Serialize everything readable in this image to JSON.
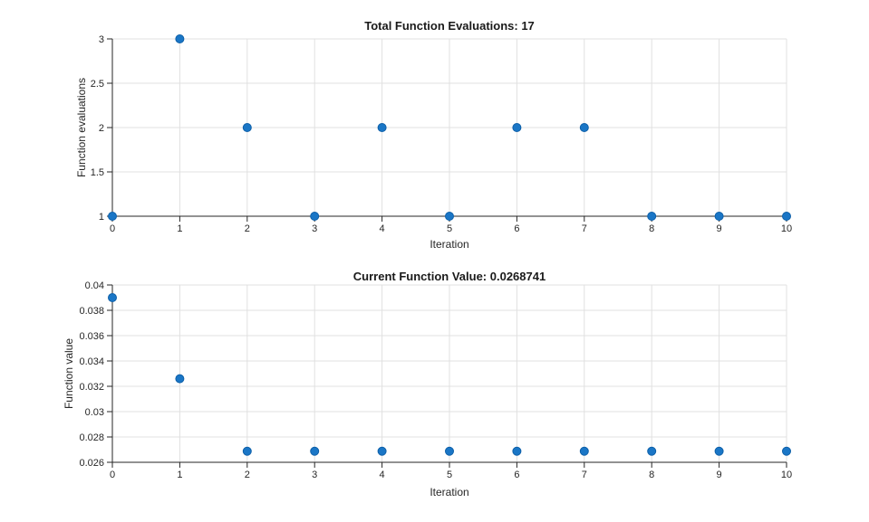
{
  "figure": {
    "background": "#ffffff"
  },
  "colors": {
    "axis": "#262626",
    "grid": "#e0e0e0",
    "tick_label": "#262626",
    "title_text": "#1a1a1a"
  },
  "chart_data": [
    {
      "type": "scatter",
      "title": "Total Function Evaluations: 17",
      "xlabel": "Iteration",
      "ylabel": "Function evaluations",
      "x": [
        0,
        1,
        2,
        3,
        4,
        5,
        6,
        7,
        8,
        9,
        10
      ],
      "y": [
        1,
        3,
        2,
        1,
        2,
        1,
        2,
        2,
        1,
        1,
        1
      ],
      "xlim": [
        0,
        10
      ],
      "ylim": [
        1,
        3
      ],
      "xticks": [
        0,
        1,
        2,
        3,
        4,
        5,
        6,
        7,
        8,
        9,
        10
      ],
      "xtick_labels": [
        "0",
        "1",
        "2",
        "3",
        "4",
        "5",
        "6",
        "7",
        "8",
        "9",
        "10"
      ],
      "yticks": [
        1,
        1.5,
        2,
        2.5,
        3
      ],
      "ytick_labels": [
        "1",
        "1.5",
        "2",
        "2.5",
        "3"
      ],
      "grid": true,
      "legend": null,
      "marker": {
        "shape": "circle",
        "size": 9,
        "fill": "#1a76c6",
        "edge": "#0d5fa8"
      }
    },
    {
      "type": "scatter",
      "title": "Current Function Value: 0.0268741",
      "xlabel": "Iteration",
      "ylabel": "Function value",
      "x": [
        0,
        1,
        2,
        3,
        4,
        5,
        6,
        7,
        8,
        9,
        10
      ],
      "y": [
        0.039,
        0.0326,
        0.0268741,
        0.0268741,
        0.0268741,
        0.0268741,
        0.0268741,
        0.0268741,
        0.0268741,
        0.0268741,
        0.0268741
      ],
      "xlim": [
        0,
        10
      ],
      "ylim": [
        0.026,
        0.04
      ],
      "xticks": [
        0,
        1,
        2,
        3,
        4,
        5,
        6,
        7,
        8,
        9,
        10
      ],
      "xtick_labels": [
        "0",
        "1",
        "2",
        "3",
        "4",
        "5",
        "6",
        "7",
        "8",
        "9",
        "10"
      ],
      "yticks": [
        0.026,
        0.028,
        0.03,
        0.032,
        0.034,
        0.036,
        0.038,
        0.04
      ],
      "ytick_labels": [
        "0.026",
        "0.028",
        "0.03",
        "0.032",
        "0.034",
        "0.036",
        "0.038",
        "0.04"
      ],
      "grid": true,
      "legend": null,
      "marker": {
        "shape": "circle",
        "size": 9,
        "fill": "#1a76c6",
        "edge": "#0d5fa8"
      }
    }
  ]
}
